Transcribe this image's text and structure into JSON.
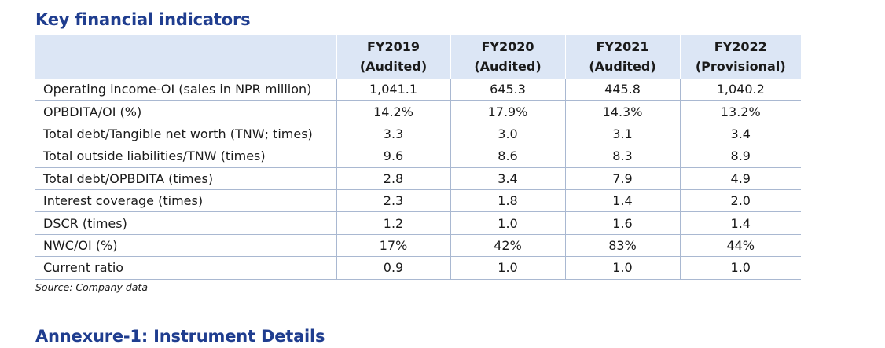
{
  "section_title": "Key financial indicators",
  "table": {
    "columns": [
      {
        "year": "FY2019",
        "status": "(Audited)"
      },
      {
        "year": "FY2020",
        "status": "(Audited)"
      },
      {
        "year": "FY2021",
        "status": "(Audited)"
      },
      {
        "year": "FY2022",
        "status": "(Provisional)"
      }
    ],
    "rows": [
      {
        "label": "Operating income-OI (sales in NPR million)",
        "values": [
          "1,041.1",
          "645.3",
          "445.8",
          "1,040.2"
        ]
      },
      {
        "label": "OPBDITA/OI (%)",
        "values": [
          "14.2%",
          "17.9%",
          "14.3%",
          "13.2%"
        ]
      },
      {
        "label": "Total debt/Tangible net worth (TNW; times)",
        "values": [
          "3.3",
          "3.0",
          "3.1",
          "3.4"
        ]
      },
      {
        "label": "Total outside liabilities/TNW (times)",
        "values": [
          "9.6",
          "8.6",
          "8.3",
          "8.9"
        ]
      },
      {
        "label": "Total debt/OPBDITA (times)",
        "values": [
          "2.8",
          "3.4",
          "7.9",
          "4.9"
        ]
      },
      {
        "label": "Interest coverage (times)",
        "values": [
          "2.3",
          "1.8",
          "1.4",
          "2.0"
        ]
      },
      {
        "label": "DSCR (times)",
        "values": [
          "1.2",
          "1.0",
          "1.6",
          "1.4"
        ]
      },
      {
        "label": "NWC/OI (%)",
        "values": [
          "17%",
          "42%",
          "83%",
          "44%"
        ]
      },
      {
        "label": "Current ratio",
        "values": [
          "0.9",
          "1.0",
          "1.0",
          "1.0"
        ]
      }
    ]
  },
  "source_note": "Source: Company data",
  "next_section_title": "Annexure-1: Instrument Details",
  "colors": {
    "heading": "#1f3d8f",
    "header_fill": "#dce6f5",
    "row_border": "#a9b8d1"
  }
}
